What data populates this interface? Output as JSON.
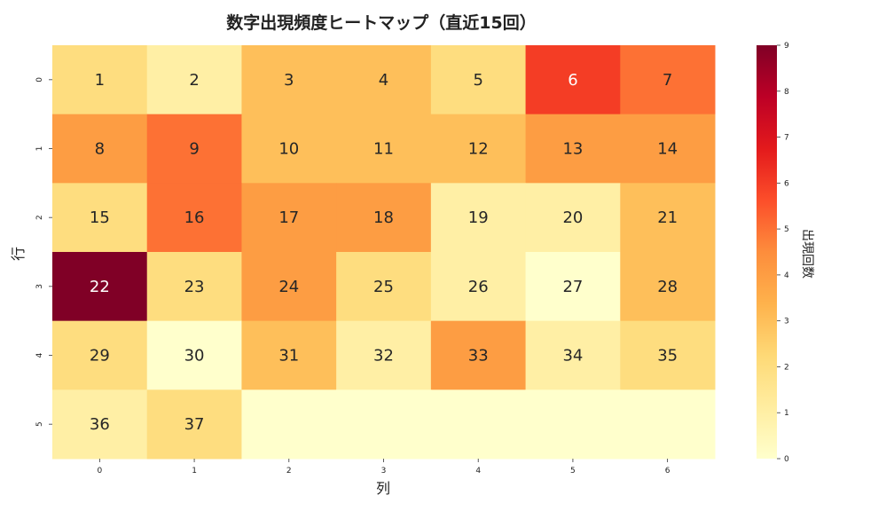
{
  "chart_data": {
    "type": "heatmap",
    "title": "数字出現頻度ヒートマップ（直近15回）",
    "xlabel": "列",
    "ylabel": "行",
    "colorbar_label": "出現回数",
    "x_ticks": [
      "0",
      "1",
      "2",
      "3",
      "4",
      "5",
      "6"
    ],
    "y_ticks": [
      "0",
      "1",
      "2",
      "3",
      "4",
      "5"
    ],
    "colorbar_ticks": [
      "0",
      "1",
      "2",
      "3",
      "4",
      "5",
      "6",
      "7",
      "8",
      "9"
    ],
    "value_range": [
      0,
      9
    ],
    "colormap": "YlOrRd",
    "colormap_stops": [
      "#ffffcc",
      "#ffeda0",
      "#fed976",
      "#feb24c",
      "#fd8d3c",
      "#fc4e2a",
      "#e31a1c",
      "#bd0026",
      "#800026"
    ],
    "cell_labels": [
      [
        "1",
        "2",
        "3",
        "4",
        "5",
        "6",
        "7"
      ],
      [
        "8",
        "9",
        "10",
        "11",
        "12",
        "13",
        "14"
      ],
      [
        "15",
        "16",
        "17",
        "18",
        "19",
        "20",
        "21"
      ],
      [
        "22",
        "23",
        "24",
        "25",
        "26",
        "27",
        "28"
      ],
      [
        "29",
        "30",
        "31",
        "32",
        "33",
        "34",
        "35"
      ],
      [
        "36",
        "37",
        "",
        "",
        "",
        "",
        ""
      ]
    ],
    "values": [
      [
        2,
        1,
        3,
        3,
        2,
        6,
        5
      ],
      [
        4,
        5,
        3,
        3,
        3,
        4,
        4
      ],
      [
        2,
        5,
        4,
        4,
        1,
        1,
        3
      ],
      [
        9,
        2,
        4,
        2,
        1,
        0,
        3
      ],
      [
        2,
        0,
        3,
        1,
        4,
        1,
        2
      ],
      [
        1,
        2,
        0,
        0,
        0,
        0,
        0
      ]
    ]
  }
}
